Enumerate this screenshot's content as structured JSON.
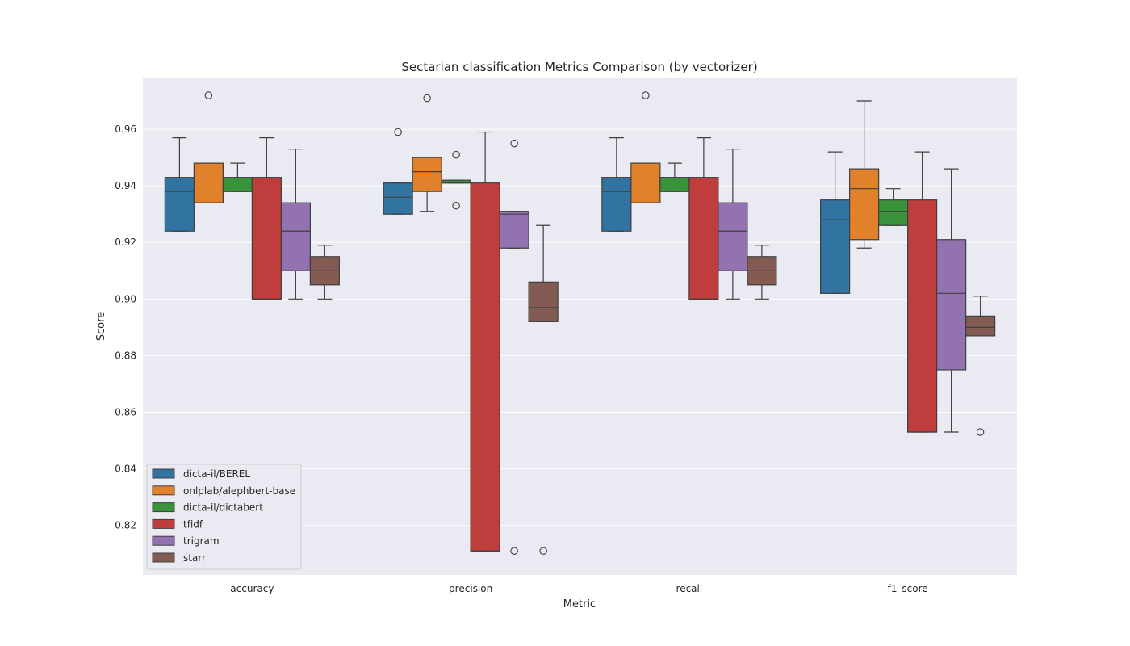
{
  "chart_data": {
    "type": "boxplot",
    "title": "Sectarian classification Metrics Comparison (by vectorizer)",
    "xlabel": "Metric",
    "ylabel": "Score",
    "ylim": [
      0.8025,
      0.978
    ],
    "yticks": [
      0.82,
      0.84,
      0.86,
      0.88,
      0.9,
      0.92,
      0.94,
      0.96
    ],
    "ytick_labels": [
      "0.82",
      "0.84",
      "0.86",
      "0.88",
      "0.90",
      "0.92",
      "0.94",
      "0.96"
    ],
    "grid": true,
    "legend_position": "bottom-left",
    "categories": [
      "accuracy",
      "precision",
      "recall",
      "f1_score"
    ],
    "series": [
      {
        "name": "dicta-il/BEREL",
        "color": "#3274a1",
        "boxes": [
          {
            "whislo": 0.924,
            "q1": 0.924,
            "med": 0.938,
            "q3": 0.943,
            "whishi": 0.957,
            "fliers": []
          },
          {
            "whislo": 0.93,
            "q1": 0.93,
            "med": 0.936,
            "q3": 0.941,
            "whishi": 0.941,
            "fliers": [
              0.959
            ]
          },
          {
            "whislo": 0.924,
            "q1": 0.924,
            "med": 0.938,
            "q3": 0.943,
            "whishi": 0.957,
            "fliers": []
          },
          {
            "whislo": 0.902,
            "q1": 0.902,
            "med": 0.928,
            "q3": 0.935,
            "whishi": 0.952,
            "fliers": []
          }
        ]
      },
      {
        "name": "onlplab/alephbert-base",
        "color": "#e1812c",
        "boxes": [
          {
            "whislo": 0.934,
            "q1": 0.934,
            "med": 0.934,
            "q3": 0.948,
            "whishi": 0.948,
            "fliers": [
              0.972
            ]
          },
          {
            "whislo": 0.931,
            "q1": 0.938,
            "med": 0.945,
            "q3": 0.95,
            "whishi": 0.95,
            "fliers": [
              0.971
            ]
          },
          {
            "whislo": 0.934,
            "q1": 0.934,
            "med": 0.934,
            "q3": 0.948,
            "whishi": 0.948,
            "fliers": [
              0.972
            ]
          },
          {
            "whislo": 0.918,
            "q1": 0.921,
            "med": 0.939,
            "q3": 0.946,
            "whishi": 0.97,
            "fliers": []
          }
        ]
      },
      {
        "name": "dicta-il/dictabert",
        "color": "#3a923a",
        "boxes": [
          {
            "whislo": 0.938,
            "q1": 0.938,
            "med": 0.938,
            "q3": 0.943,
            "whishi": 0.948,
            "fliers": []
          },
          {
            "whislo": 0.941,
            "q1": 0.941,
            "med": 0.941,
            "q3": 0.942,
            "whishi": 0.942,
            "fliers": [
              0.951,
              0.933
            ]
          },
          {
            "whislo": 0.938,
            "q1": 0.938,
            "med": 0.938,
            "q3": 0.943,
            "whishi": 0.948,
            "fliers": []
          },
          {
            "whislo": 0.926,
            "q1": 0.926,
            "med": 0.931,
            "q3": 0.935,
            "whishi": 0.939,
            "fliers": []
          }
        ]
      },
      {
        "name": "tfidf",
        "color": "#c03d3e",
        "boxes": [
          {
            "whislo": 0.9,
            "q1": 0.9,
            "med": 0.9,
            "q3": 0.943,
            "whishi": 0.957,
            "fliers": []
          },
          {
            "whislo": 0.811,
            "q1": 0.811,
            "med": 0.811,
            "q3": 0.941,
            "whishi": 0.959,
            "fliers": []
          },
          {
            "whislo": 0.9,
            "q1": 0.9,
            "med": 0.9,
            "q3": 0.943,
            "whishi": 0.957,
            "fliers": []
          },
          {
            "whislo": 0.853,
            "q1": 0.853,
            "med": 0.853,
            "q3": 0.935,
            "whishi": 0.952,
            "fliers": []
          }
        ]
      },
      {
        "name": "trigram",
        "color": "#9372b2",
        "boxes": [
          {
            "whislo": 0.9,
            "q1": 0.91,
            "med": 0.924,
            "q3": 0.934,
            "whishi": 0.953,
            "fliers": []
          },
          {
            "whislo": 0.918,
            "q1": 0.918,
            "med": 0.93,
            "q3": 0.931,
            "whishi": 0.931,
            "fliers": [
              0.955,
              0.811
            ]
          },
          {
            "whislo": 0.9,
            "q1": 0.91,
            "med": 0.924,
            "q3": 0.934,
            "whishi": 0.953,
            "fliers": []
          },
          {
            "whislo": 0.853,
            "q1": 0.875,
            "med": 0.902,
            "q3": 0.921,
            "whishi": 0.946,
            "fliers": []
          }
        ]
      },
      {
        "name": "starr",
        "color": "#845b53",
        "boxes": [
          {
            "whislo": 0.9,
            "q1": 0.905,
            "med": 0.91,
            "q3": 0.915,
            "whishi": 0.919,
            "fliers": []
          },
          {
            "whislo": 0.892,
            "q1": 0.892,
            "med": 0.897,
            "q3": 0.906,
            "whishi": 0.926,
            "fliers": [
              0.811
            ]
          },
          {
            "whislo": 0.9,
            "q1": 0.905,
            "med": 0.91,
            "q3": 0.915,
            "whishi": 0.919,
            "fliers": []
          },
          {
            "whislo": 0.887,
            "q1": 0.887,
            "med": 0.89,
            "q3": 0.894,
            "whishi": 0.901,
            "fliers": [
              0.853
            ]
          }
        ]
      }
    ]
  }
}
